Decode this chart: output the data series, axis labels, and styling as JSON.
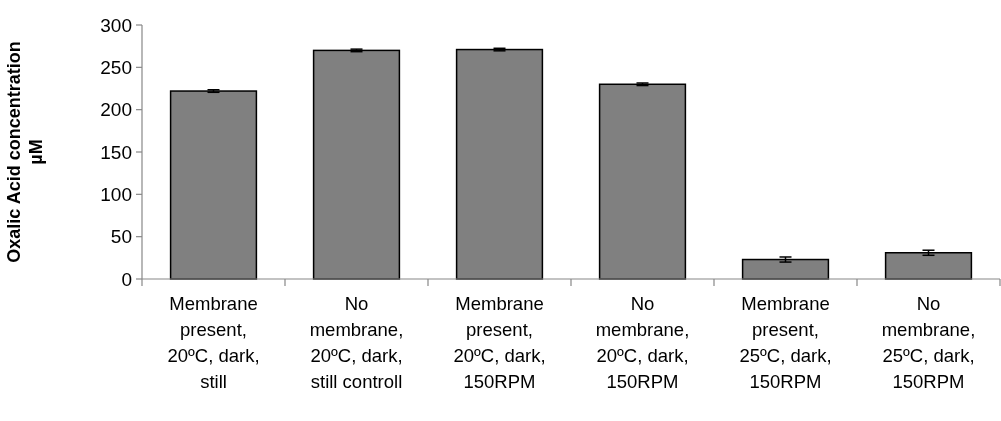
{
  "chart_data": {
    "type": "bar",
    "ylabel": "Oxalic Acid  concentration\nµM",
    "categories": [
      "Membrane\npresent,\n20ºC, dark,\nstill",
      "No\nmembrane,\n20ºC, dark,\nstill controll",
      "Membrane\npresent,\n20ºC, dark,\n150RPM",
      "No\nmembrane,\n20ºC, dark,\n150RPM",
      "Membrane\npresent,\n25ºC, dark,\n150RPM",
      "No\nmembrane,\n25ºC, dark,\n150RPM"
    ],
    "values": [
      222,
      270,
      271,
      230,
      23,
      31
    ],
    "errors": [
      1.5,
      1.5,
      1.5,
      1.5,
      3,
      3
    ],
    "color": "#808080",
    "ylim": [
      0,
      300
    ],
    "yticks": [
      0,
      50,
      100,
      150,
      200,
      250,
      300
    ],
    "grid": false
  }
}
